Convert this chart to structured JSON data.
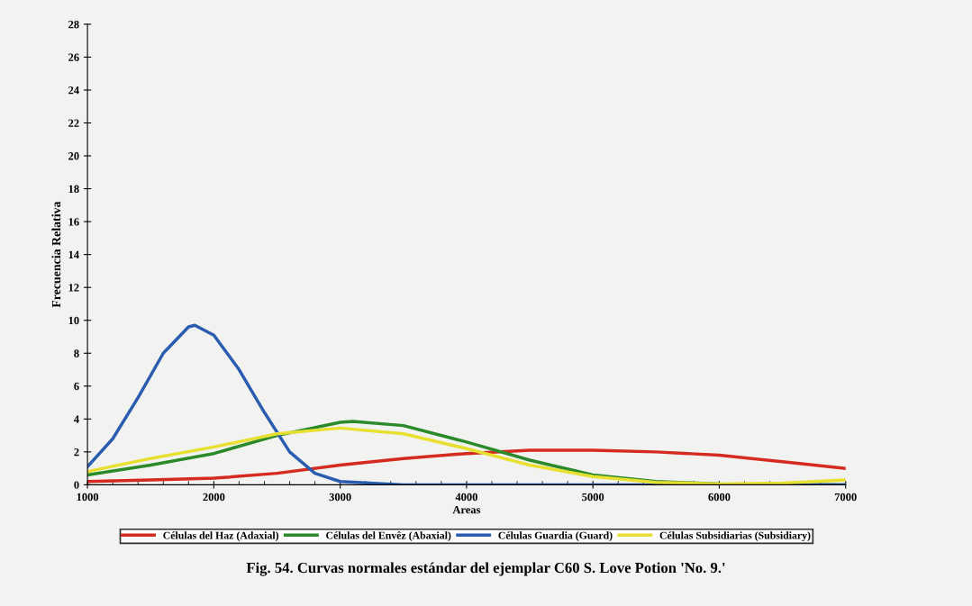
{
  "chart_data": {
    "type": "line",
    "xlabel": "Areas",
    "ylabel": "Frecuencia Relativa",
    "annotations": [
      "Fig. 54. Curvas normales estándar del ejemplar C60 S. Love Potion 'No. 9.'"
    ],
    "xlim": [
      1000,
      7000
    ],
    "xticks": [
      1000,
      2000,
      3000,
      4000,
      5000,
      6000,
      7000
    ],
    "ylim": [
      0,
      28
    ],
    "yticks": [
      0,
      2,
      4,
      6,
      8,
      10,
      12,
      14,
      16,
      18,
      20,
      22,
      24,
      26,
      28
    ],
    "grid": false,
    "legend": "bottom",
    "marker": "none",
    "line_style": "solid",
    "series": [
      {
        "name": "Células del Haz (Adaxial)",
        "color": "#d42a20",
        "x": [
          1000,
          1500,
          2000,
          2500,
          3000,
          3500,
          4000,
          4500,
          5000,
          5500,
          6000,
          6500,
          7000
        ],
        "values": [
          0.2,
          0.3,
          0.4,
          0.7,
          1.2,
          1.6,
          1.9,
          2.1,
          2.1,
          2.0,
          1.8,
          1.4,
          1.0
        ]
      },
      {
        "name": "Células del Envêz (Abaxial)",
        "color": "#2a8a2a",
        "x": [
          1000,
          1500,
          2000,
          2500,
          3000,
          3100,
          3500,
          4000,
          4500,
          5000,
          5500,
          6000,
          7000
        ],
        "values": [
          0.6,
          1.2,
          1.9,
          3.0,
          3.8,
          3.85,
          3.6,
          2.6,
          1.5,
          0.6,
          0.2,
          0.05,
          0
        ]
      },
      {
        "name": "Células Guardia (Guard)",
        "color": "#2a5db0",
        "x": [
          1000,
          1200,
          1400,
          1600,
          1800,
          1850,
          2000,
          2200,
          2400,
          2600,
          2800,
          3000,
          3500,
          4000,
          5000,
          6000,
          7000
        ],
        "values": [
          1.1,
          2.8,
          5.3,
          8.0,
          9.6,
          9.7,
          9.1,
          7.0,
          4.4,
          2.0,
          0.7,
          0.2,
          0,
          0,
          0,
          0,
          0
        ]
      },
      {
        "name": "Células Subsidiarias (Subsidiary)",
        "color": "#e8e030",
        "x": [
          1000,
          1500,
          2000,
          2500,
          3000,
          3500,
          4000,
          4500,
          5000,
          5500,
          6000,
          6500,
          7000
        ],
        "values": [
          0.8,
          1.6,
          2.3,
          3.1,
          3.45,
          3.1,
          2.2,
          1.2,
          0.5,
          0.15,
          0.05,
          0.1,
          0.3
        ]
      }
    ]
  }
}
